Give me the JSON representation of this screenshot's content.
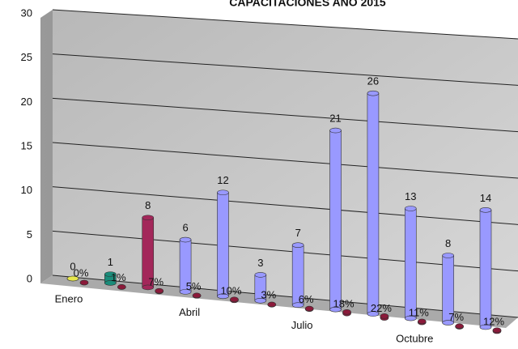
{
  "chart_data": {
    "type": "bar3d",
    "title": "CAPACITACIONES AÑO 2015",
    "categories": [
      "Enero",
      null,
      null,
      "Abril",
      null,
      null,
      "Julio",
      null,
      null,
      "Octubre",
      null,
      null
    ],
    "series": [
      {
        "values": [
          0,
          1,
          8,
          6,
          12,
          3,
          7,
          21,
          26,
          13,
          8,
          14
        ],
        "colors": [
          "#e6e64d",
          "#1a8c7a",
          "#a3275a",
          "#9999ff",
          "#9999ff",
          "#9999ff",
          "#9999ff",
          "#9999ff",
          "#9999ff",
          "#9999ff",
          "#9999ff",
          "#9999ff"
        ]
      },
      {
        "values": [
          0,
          0.01,
          0.07,
          0.05,
          0.1,
          0.03,
          0.06,
          0.18,
          0.22,
          0.11,
          0.07,
          0.12
        ],
        "value_labels": [
          "0%",
          "1%",
          "7%",
          "5%",
          "10%",
          "3%",
          "6%",
          "18%",
          "22%",
          "11%",
          "7%",
          "12%"
        ],
        "color": "#8b1a3a"
      }
    ],
    "ylim": [
      0,
      30
    ],
    "yticks": [
      0,
      5,
      10,
      15,
      20,
      25,
      30
    ],
    "grid": true
  }
}
